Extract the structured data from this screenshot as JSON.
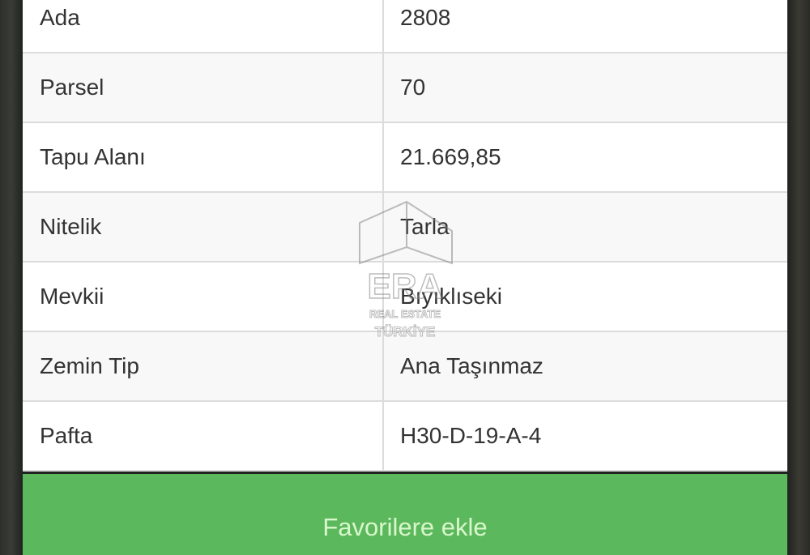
{
  "rows": [
    {
      "label": "Ada",
      "value": "2808"
    },
    {
      "label": "Parsel",
      "value": "70"
    },
    {
      "label": "Tapu Alanı",
      "value": "21.669,85"
    },
    {
      "label": "Nitelik",
      "value": "Tarla"
    },
    {
      "label": "Mevkii",
      "value": "Bıyıklıseki"
    },
    {
      "label": "Zemin Tip",
      "value": "Ana Taşınmaz"
    },
    {
      "label": "Pafta",
      "value": "H30-D-19-A-4"
    }
  ],
  "favorite_button": {
    "label": "Favorilere ekle",
    "color": "#5cb85c"
  },
  "watermark": {
    "brand": "ERA",
    "line1": "REAL ESTATE",
    "line2": "TÜRKİYE"
  }
}
